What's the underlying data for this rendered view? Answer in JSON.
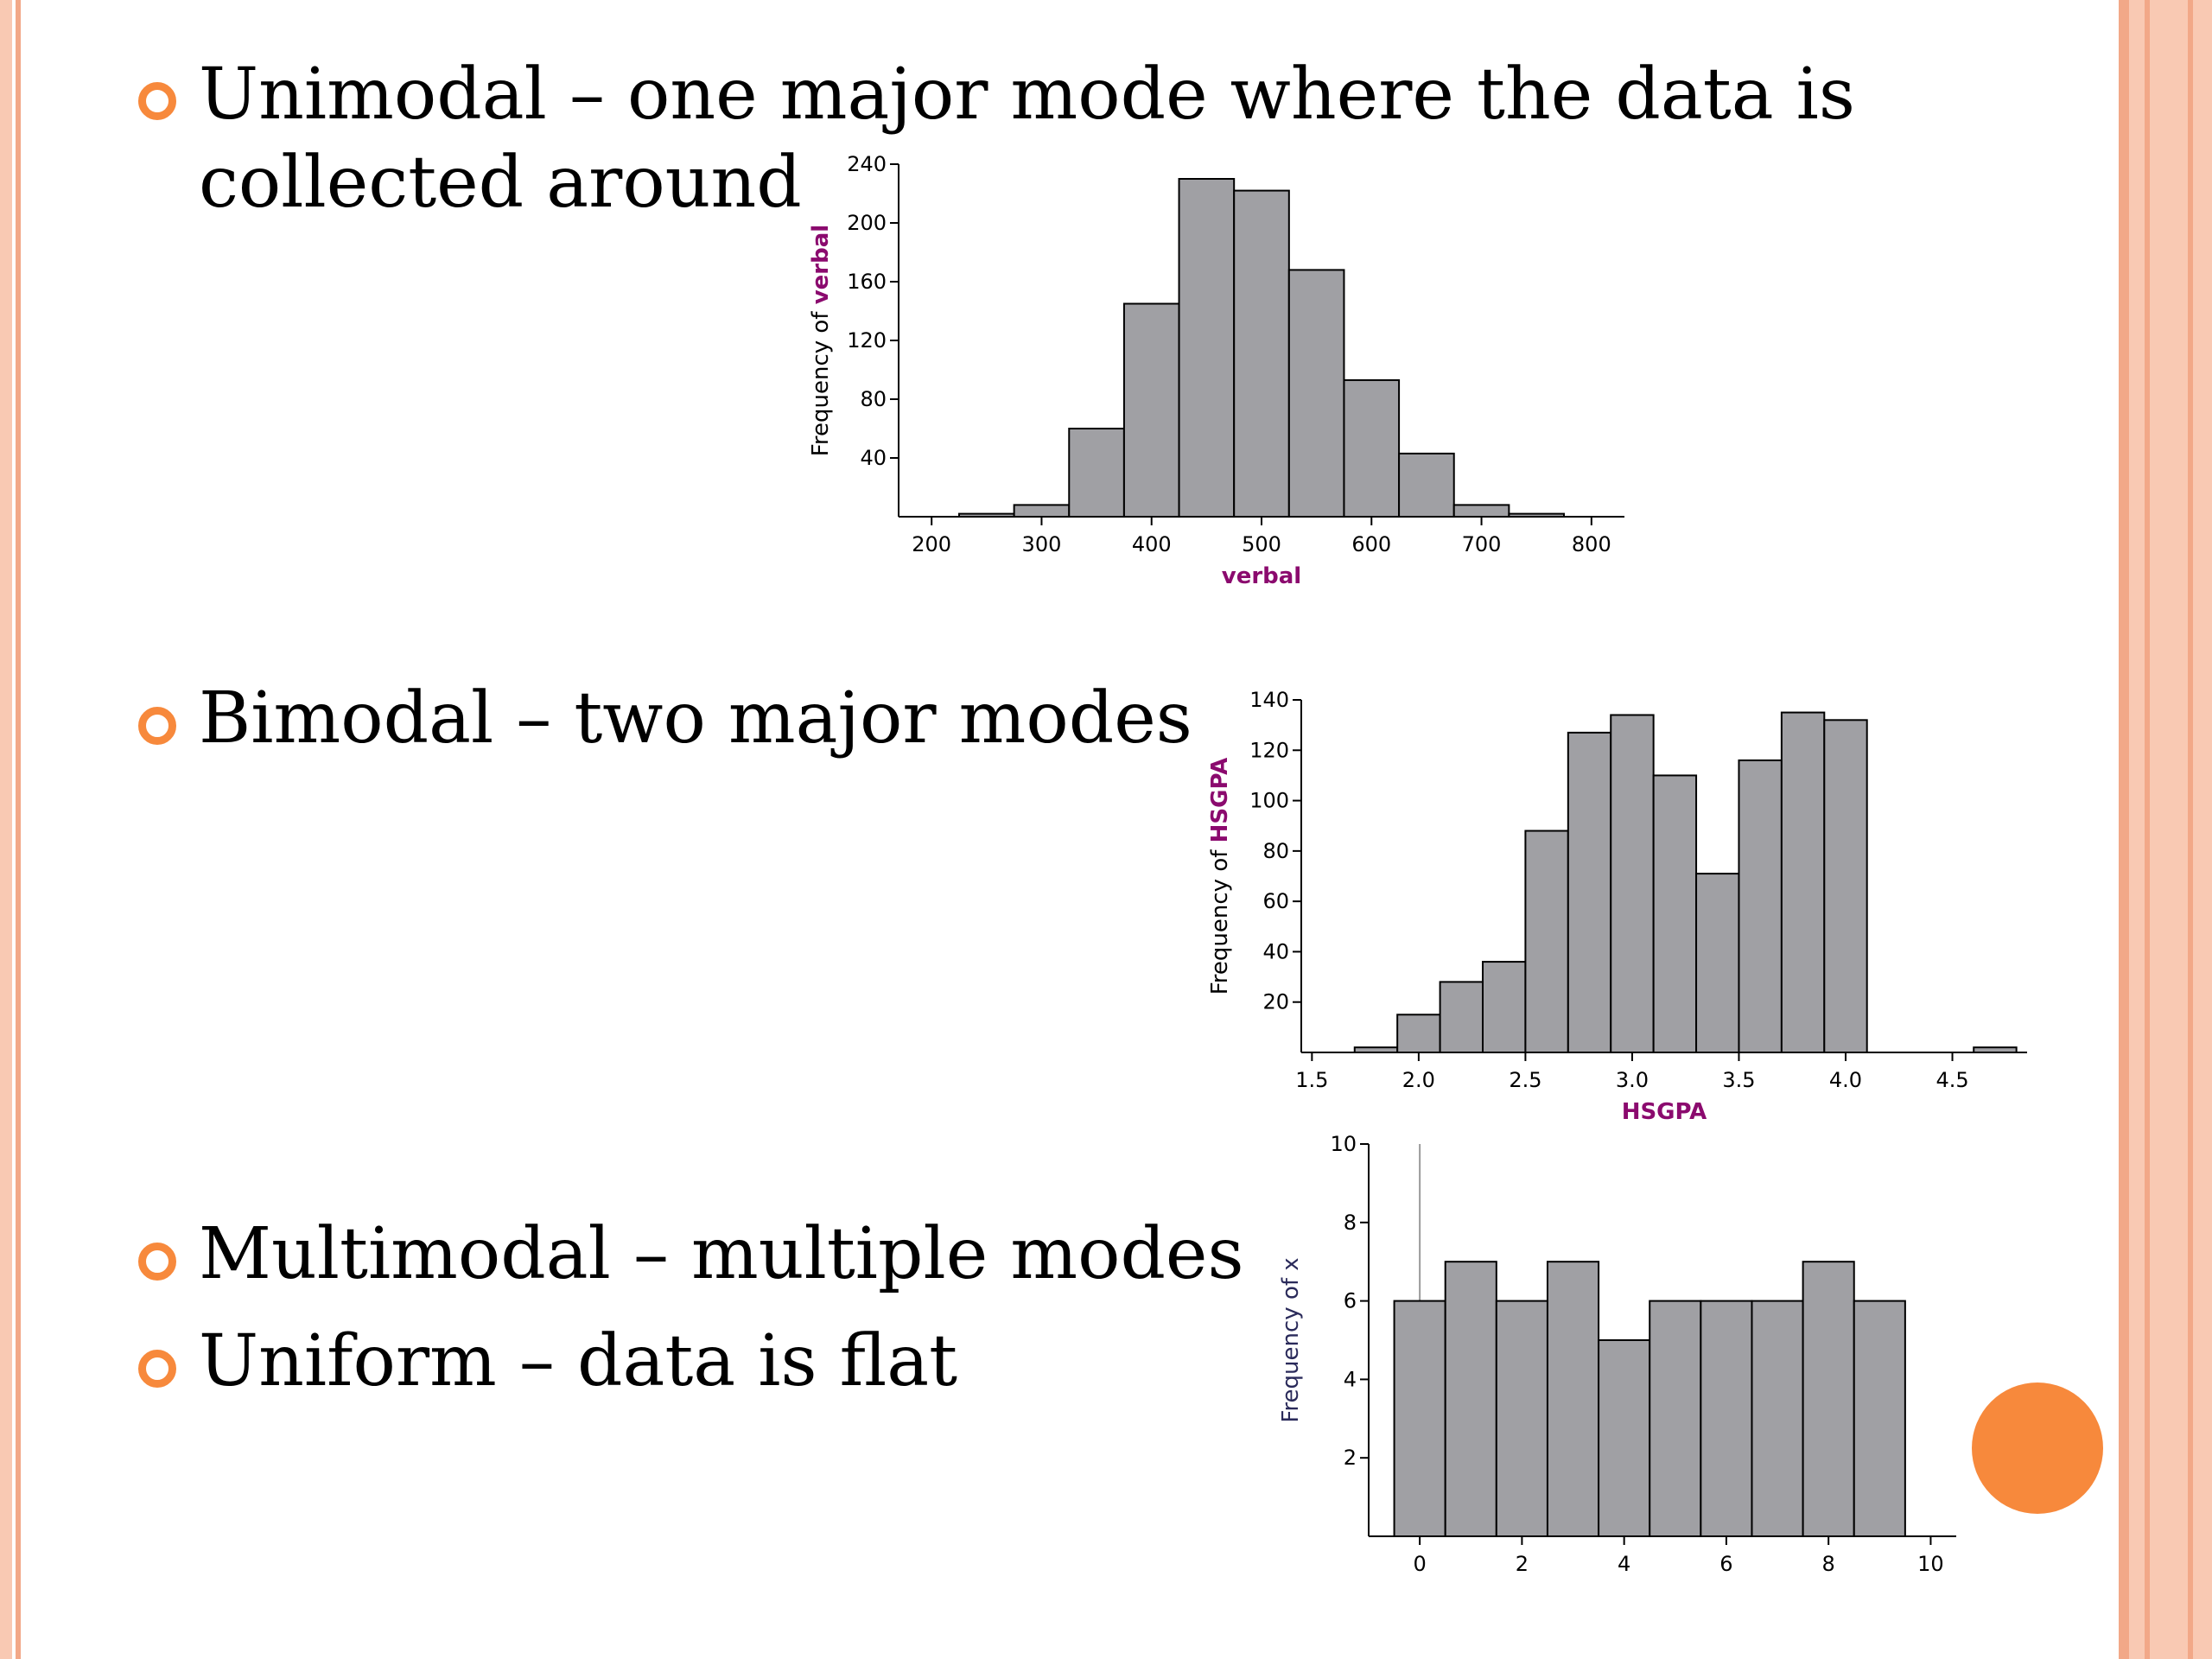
{
  "slide": {
    "bullets": [
      {
        "line1": "Unimodal – one major mode where the data is",
        "line2": "collected around"
      },
      {
        "line1": "Bimodal – two major modes"
      },
      {
        "line1": "Multimodal – multiple modes"
      },
      {
        "line1": "Uniform – data is flat"
      }
    ],
    "colors": {
      "accent": "#F7893C",
      "border_light": "#F9C9B3",
      "border_dark": "#F2A888",
      "bar_fill": "#A0A0A4",
      "axis_label_var": "#8B0A6E",
      "axis_label_text": "#2A2A5A"
    },
    "icons": {
      "bullet": "circle-bullet-icon",
      "corner": "orange-circle-icon"
    }
  },
  "chart_data": [
    {
      "type": "bar",
      "histogram": true,
      "bin_edges": [
        225,
        275,
        325,
        375,
        425,
        475,
        525,
        575,
        625,
        675,
        725,
        775
      ],
      "values": [
        2,
        8,
        60,
        145,
        230,
        222,
        168,
        93,
        43,
        8,
        2
      ],
      "xlabel": "verbal",
      "ylabel_prefix": "Frequency of ",
      "ylabel_var": "verbal",
      "xlim": [
        170,
        830
      ],
      "ylim": [
        0,
        240
      ],
      "xticks": [
        200,
        300,
        400,
        500,
        600,
        700,
        800
      ],
      "yticks": [
        40,
        80,
        120,
        160,
        200,
        240
      ],
      "grid": false
    },
    {
      "type": "bar",
      "histogram": true,
      "bin_edges": [
        1.7,
        1.9,
        2.1,
        2.3,
        2.5,
        2.7,
        2.9,
        3.1,
        3.3,
        3.5,
        3.7,
        3.9,
        4.1
      ],
      "values": [
        2,
        15,
        28,
        36,
        88,
        127,
        134,
        110,
        71,
        116,
        135,
        132
      ],
      "extra_bins": [
        {
          "from": 4.6,
          "to": 4.8,
          "value": 2
        }
      ],
      "xlabel": "HSGPA",
      "ylabel_prefix": "Frequency of ",
      "ylabel_var": "HSGPA",
      "xlim": [
        1.45,
        4.85
      ],
      "ylim": [
        0,
        140
      ],
      "xticks": [
        "1.5",
        "2.0",
        "2.5",
        "3.0",
        "3.5",
        "4.0",
        "4.5"
      ],
      "yticks": [
        20,
        40,
        60,
        80,
        100,
        120,
        140
      ],
      "grid": false
    },
    {
      "type": "bar",
      "histogram": true,
      "bin_edges": [
        -0.5,
        0.5,
        1.5,
        2.5,
        3.5,
        4.5,
        5.5,
        6.5,
        7.5,
        8.5,
        9.5
      ],
      "values": [
        6,
        7,
        6,
        7,
        5,
        6,
        6,
        6,
        7,
        6
      ],
      "xlabel": "",
      "ylabel_prefix": "Frequency of ",
      "ylabel_var": "x",
      "xlim": [
        -1,
        10.5
      ],
      "ylim": [
        0,
        10
      ],
      "xticks": [
        0,
        2,
        4,
        6,
        8,
        10
      ],
      "yticks": [
        2,
        4,
        6,
        8,
        10
      ],
      "grid": false
    }
  ]
}
